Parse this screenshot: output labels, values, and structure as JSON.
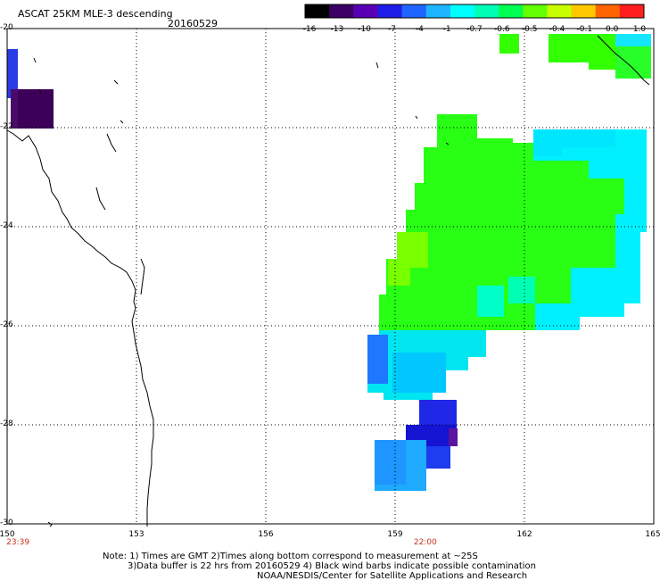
{
  "header": {
    "title": "ASCAT 25KM MLE-3 descending",
    "date": "20160529"
  },
  "colorbar": {
    "labels": [
      "-16",
      "-13",
      "-10",
      "-7",
      "-4",
      "-1",
      "-0.7",
      "-0.6",
      "-0.5",
      "-0.4",
      "-0.1",
      "0.0",
      "1.0"
    ],
    "colors": [
      "#000000",
      "#3c0064",
      "#5a00b4",
      "#1e1ee6",
      "#1e64ff",
      "#1eb4ff",
      "#00ffff",
      "#00ffb4",
      "#00ff50",
      "#64ff00",
      "#c8ff00",
      "#ffc800",
      "#ff6400",
      "#ff1e1e"
    ]
  },
  "axes": {
    "lat_labels": [
      "-20",
      "-22",
      "-24",
      "-26",
      "-28",
      "-30"
    ],
    "lon_labels": [
      "150",
      "153",
      "156",
      "159",
      "162",
      "165"
    ],
    "lat_range": [
      -20,
      -30
    ],
    "lon_range": [
      150,
      165
    ],
    "grid": "dotted"
  },
  "time_labels": [
    {
      "lon": 150.25,
      "text": "23:39"
    },
    {
      "lon": 159.7,
      "text": "22:00"
    }
  ],
  "notes": {
    "line1": "Note: 1) Times are GMT 2)Times along bottom correspond to measurement at ~25S",
    "line2": "3)Data buffer is 22 hrs from 20160529 4) Black wind barbs indicate possible contamination",
    "line3": "NOAA/NESDIS/Center for Satellite Applications and Research"
  }
}
